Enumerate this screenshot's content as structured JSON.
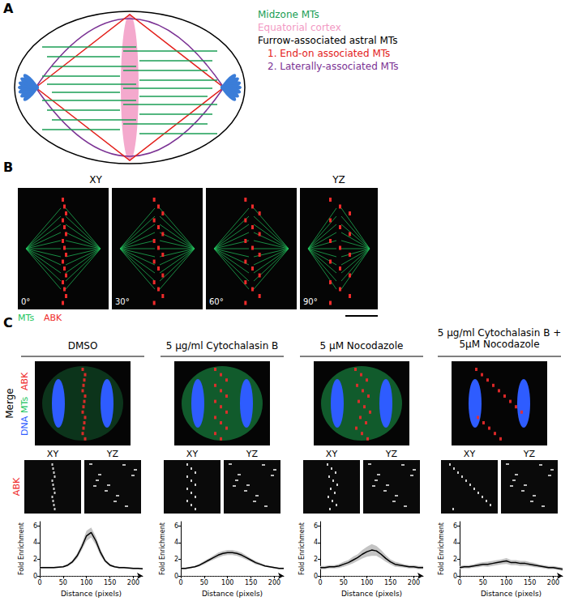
{
  "figure": {
    "panel_a": {
      "label": "A",
      "legend": [
        {
          "text": "Midzone MTs",
          "color": "#1a9e55"
        },
        {
          "text": "Equatorial cortex",
          "color": "#f29ac4"
        },
        {
          "text": "Furrow-associated astral MTs",
          "color": "#000000"
        },
        {
          "text": "1. End-on associated MTs",
          "color": "#e3201b"
        },
        {
          "text": "2. Laterally-associated MTs",
          "color": "#7b3294"
        }
      ]
    },
    "panel_b": {
      "label": "B",
      "views": [
        "XY",
        "YZ"
      ],
      "angles": [
        "0°",
        "30°",
        "60°",
        "90°"
      ],
      "channels": [
        {
          "text": "MTs",
          "color": "#22c55e"
        },
        {
          "text": "ABK",
          "color": "#ef2b2b"
        }
      ]
    },
    "panel_c": {
      "label": "C",
      "conditions": [
        "DMSO",
        "5 µg/ml Cytochalasin B",
        "5 µM Nocodazole",
        "5 µg/ml Cytochalasin B + 5µM Nocodazole"
      ],
      "row_label": "Merge",
      "merge_channels": [
        {
          "text": "DNA",
          "color": "#2e5cff"
        },
        {
          "text": "MTs",
          "color": "#22c55e"
        },
        {
          "text": "ABK",
          "color": "#ef2b2b"
        }
      ],
      "view_labels": [
        "XY",
        "YZ"
      ],
      "abk_label": "ABK"
    }
  },
  "chart_data": [
    {
      "type": "line",
      "color": "#000000",
      "xlabel": "Distance (pixels)",
      "ylabel": "Fold Enrichment",
      "x": [
        0,
        10,
        20,
        30,
        40,
        50,
        60,
        70,
        80,
        90,
        100,
        110,
        120,
        130,
        140,
        150,
        160,
        170,
        180,
        190,
        200,
        210,
        220
      ],
      "values": [
        1.0,
        1.0,
        1.0,
        1.0,
        1.05,
        1.1,
        1.3,
        1.7,
        2.4,
        3.5,
        4.8,
        5.2,
        4.2,
        2.8,
        1.8,
        1.3,
        1.1,
        1.0,
        1.0,
        0.95,
        0.9,
        0.9,
        0.85
      ],
      "error": [
        0.1,
        0.1,
        0.1,
        0.1,
        0.1,
        0.1,
        0.15,
        0.2,
        0.3,
        0.4,
        0.6,
        0.6,
        0.5,
        0.4,
        0.2,
        0.15,
        0.1,
        0.1,
        0.1,
        0.1,
        0.1,
        0.1,
        0.1
      ],
      "xlim": [
        0,
        220
      ],
      "ylim": [
        0,
        6.5
      ],
      "xticks": [
        0,
        50,
        100,
        150,
        200
      ],
      "yticks": [
        0,
        2,
        4,
        6
      ]
    },
    {
      "type": "line",
      "color": "#000000",
      "xlabel": "Distance (pixels)",
      "ylabel": "Fold Enrichment",
      "x": [
        0,
        10,
        20,
        30,
        40,
        50,
        60,
        70,
        80,
        90,
        100,
        110,
        120,
        130,
        140,
        150,
        160,
        170,
        180,
        190,
        200,
        210,
        220
      ],
      "values": [
        0.9,
        0.9,
        1.0,
        1.1,
        1.3,
        1.6,
        1.9,
        2.2,
        2.5,
        2.7,
        2.8,
        2.8,
        2.7,
        2.5,
        2.2,
        1.9,
        1.6,
        1.4,
        1.2,
        1.1,
        1.0,
        0.9,
        0.9
      ],
      "error": [
        0.1,
        0.1,
        0.1,
        0.1,
        0.15,
        0.2,
        0.2,
        0.25,
        0.3,
        0.3,
        0.3,
        0.3,
        0.3,
        0.3,
        0.25,
        0.2,
        0.2,
        0.15,
        0.1,
        0.1,
        0.1,
        0.1,
        0.1
      ],
      "xlim": [
        0,
        220
      ],
      "ylim": [
        0,
        6.5
      ],
      "xticks": [
        0,
        50,
        100,
        150,
        200
      ],
      "yticks": [
        0,
        2,
        4,
        6
      ]
    },
    {
      "type": "line",
      "color": "#000000",
      "xlabel": "Distance (pixels)",
      "ylabel": "Fold Enrichment",
      "x": [
        0,
        10,
        20,
        30,
        40,
        50,
        60,
        70,
        80,
        90,
        100,
        110,
        120,
        130,
        140,
        150,
        160,
        170,
        180,
        190,
        200,
        210,
        220
      ],
      "values": [
        1.0,
        1.0,
        1.1,
        1.1,
        1.2,
        1.4,
        1.6,
        1.9,
        2.2,
        2.6,
        2.9,
        3.1,
        3.0,
        2.6,
        2.1,
        1.7,
        1.4,
        1.3,
        1.2,
        1.1,
        1.1,
        1.0,
        1.0
      ],
      "error": [
        0.2,
        0.2,
        0.2,
        0.2,
        0.25,
        0.3,
        0.3,
        0.4,
        0.4,
        0.5,
        0.6,
        0.7,
        0.6,
        0.5,
        0.4,
        0.3,
        0.3,
        0.25,
        0.2,
        0.2,
        0.2,
        0.2,
        0.2
      ],
      "xlim": [
        0,
        220
      ],
      "ylim": [
        0,
        6.5
      ],
      "xticks": [
        0,
        50,
        100,
        150,
        200
      ],
      "yticks": [
        0,
        2,
        4,
        6
      ]
    },
    {
      "type": "line",
      "color": "#000000",
      "xlabel": "Distance (pixels)",
      "ylabel": "Fold Enrichment",
      "x": [
        0,
        10,
        20,
        30,
        40,
        50,
        60,
        70,
        80,
        90,
        100,
        110,
        120,
        130,
        140,
        150,
        160,
        170,
        180,
        190,
        200,
        210,
        220
      ],
      "values": [
        1.0,
        1.1,
        1.1,
        1.2,
        1.3,
        1.4,
        1.4,
        1.5,
        1.6,
        1.7,
        1.8,
        1.6,
        1.6,
        1.5,
        1.5,
        1.4,
        1.3,
        1.2,
        1.1,
        1.0,
        1.0,
        0.9,
        0.8
      ],
      "error": [
        0.2,
        0.2,
        0.2,
        0.2,
        0.25,
        0.25,
        0.3,
        0.3,
        0.3,
        0.3,
        0.35,
        0.3,
        0.3,
        0.3,
        0.3,
        0.25,
        0.25,
        0.2,
        0.2,
        0.2,
        0.2,
        0.2,
        0.2
      ],
      "xlim": [
        0,
        220
      ],
      "ylim": [
        0,
        6.5
      ],
      "xticks": [
        0,
        50,
        100,
        150,
        200
      ],
      "yticks": [
        0,
        2,
        4,
        6
      ]
    }
  ]
}
